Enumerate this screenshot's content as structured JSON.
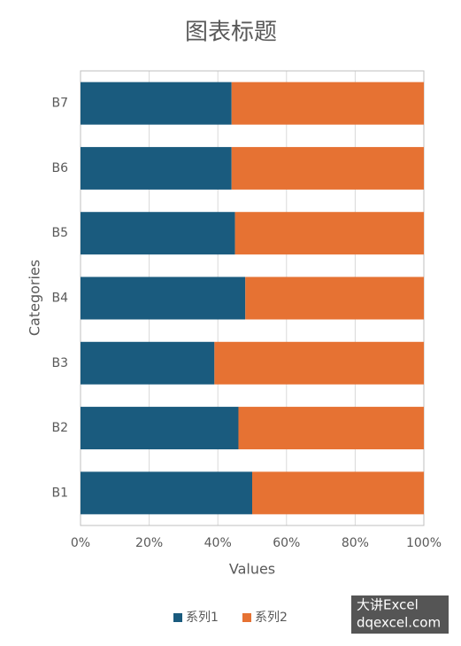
{
  "chart_data": {
    "type": "stacked_barh",
    "title": "图表标题",
    "x_label": "Values",
    "y_label": "Categories",
    "categories": [
      "B1",
      "B2",
      "B3",
      "B4",
      "B5",
      "B6",
      "B7"
    ],
    "series": [
      {
        "name": "系列1",
        "color": "#1a5b7e",
        "values": [
          50,
          46,
          39,
          48,
          45,
          44,
          44
        ]
      },
      {
        "name": "系列2",
        "color": "#e67233",
        "values": [
          50,
          54,
          61,
          52,
          55,
          56,
          56
        ]
      }
    ],
    "xlim": [
      0,
      100
    ],
    "xticks": [
      {
        "value": 0,
        "label": "0%"
      },
      {
        "value": 20,
        "label": "20%"
      },
      {
        "value": 40,
        "label": "40%"
      },
      {
        "value": 60,
        "label": "60%"
      },
      {
        "value": 80,
        "label": "80%"
      },
      {
        "value": 100,
        "label": "100%"
      }
    ],
    "grid": true,
    "legend": "bottom"
  },
  "watermark": {
    "line1": "大讲Excel",
    "line2": "dqexcel.com"
  }
}
